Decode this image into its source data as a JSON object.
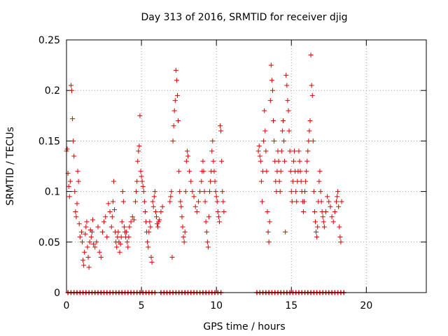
{
  "chart_data": {
    "type": "scatter",
    "title": "Day 313 of 2016, SRMTID for receiver djig",
    "xlabel": "GPS time / hours",
    "ylabel": "SRMTID / TECUs",
    "xlim": [
      0,
      24
    ],
    "ylim": [
      0,
      0.25
    ],
    "xticks": [
      0,
      5,
      10,
      15,
      20
    ],
    "xtick_labels": [
      "0",
      "5",
      "10",
      "15",
      "20"
    ],
    "yticks": [
      0,
      0.05,
      0.1,
      0.15,
      0.2,
      0.25
    ],
    "ytick_labels": [
      "0",
      "0.05",
      "0.1",
      "0.15",
      "0.2",
      "0.25"
    ],
    "grid": true,
    "marker": "+",
    "series": [
      {
        "name": "SRMTID",
        "color": "#e00000",
        "points": [
          [
            0.0,
            0.14
          ],
          [
            0.05,
            0.142
          ],
          [
            0.1,
            0.118
          ],
          [
            0.15,
            0.105
          ],
          [
            0.2,
            0.095
          ],
          [
            0.25,
            0.11
          ],
          [
            0.3,
            0.205
          ],
          [
            0.35,
            0.2
          ],
          [
            0.4,
            0.172
          ],
          [
            0.45,
            0.15
          ],
          [
            0.5,
            0.135
          ],
          [
            0.55,
            0.1
          ],
          [
            0.6,
            0.08
          ],
          [
            0.65,
            0.075
          ],
          [
            0.7,
            0.088
          ],
          [
            0.75,
            0.12
          ],
          [
            0.8,
            0.11
          ],
          [
            0.85,
            0.068
          ],
          [
            0.9,
            0.055
          ],
          [
            1.0,
            0.06
          ],
          [
            1.05,
            0.05
          ],
          [
            1.1,
            0.032
          ],
          [
            1.15,
            0.027
          ],
          [
            1.2,
            0.04
          ],
          [
            1.25,
            0.058
          ],
          [
            1.3,
            0.065
          ],
          [
            1.35,
            0.07
          ],
          [
            1.4,
            0.045
          ],
          [
            1.45,
            0.035
          ],
          [
            1.5,
            0.025
          ],
          [
            1.55,
            0.05
          ],
          [
            1.6,
            0.062
          ],
          [
            1.65,
            0.055
          ],
          [
            1.7,
            0.06
          ],
          [
            1.75,
            0.072
          ],
          [
            1.8,
            0.048
          ],
          [
            1.9,
            0.045
          ],
          [
            2.0,
            0.05
          ],
          [
            2.1,
            0.065
          ],
          [
            2.2,
            0.04
          ],
          [
            2.3,
            0.035
          ],
          [
            2.4,
            0.06
          ],
          [
            2.5,
            0.07
          ],
          [
            2.6,
            0.075
          ],
          [
            2.7,
            0.055
          ],
          [
            2.8,
            0.088
          ],
          [
            2.9,
            0.08
          ],
          [
            3.0,
            0.065
          ],
          [
            3.05,
            0.075
          ],
          [
            3.1,
            0.09
          ],
          [
            3.15,
            0.11
          ],
          [
            3.2,
            0.082
          ],
          [
            3.25,
            0.06
          ],
          [
            3.3,
            0.05
          ],
          [
            3.35,
            0.045
          ],
          [
            3.4,
            0.055
          ],
          [
            3.45,
            0.06
          ],
          [
            3.5,
            0.05
          ],
          [
            3.55,
            0.04
          ],
          [
            3.6,
            0.048
          ],
          [
            3.65,
            0.055
          ],
          [
            3.7,
            0.07
          ],
          [
            3.75,
            0.1
          ],
          [
            3.8,
            0.09
          ],
          [
            3.85,
            0.065
          ],
          [
            3.9,
            0.06
          ],
          [
            3.95,
            0.055
          ],
          [
            4.0,
            0.06
          ],
          [
            4.05,
            0.05
          ],
          [
            4.1,
            0.045
          ],
          [
            4.15,
            0.055
          ],
          [
            4.2,
            0.065
          ],
          [
            4.3,
            0.07
          ],
          [
            4.4,
            0.075
          ],
          [
            4.5,
            0.072
          ],
          [
            4.6,
            0.09
          ],
          [
            4.65,
            0.1
          ],
          [
            4.7,
            0.11
          ],
          [
            4.75,
            0.13
          ],
          [
            4.8,
            0.14
          ],
          [
            4.85,
            0.145
          ],
          [
            4.9,
            0.175
          ],
          [
            4.95,
            0.12
          ],
          [
            5.0,
            0.115
          ],
          [
            5.05,
            0.11
          ],
          [
            5.1,
            0.105
          ],
          [
            5.15,
            0.1
          ],
          [
            5.2,
            0.09
          ],
          [
            5.25,
            0.08
          ],
          [
            5.3,
            0.07
          ],
          [
            5.35,
            0.06
          ],
          [
            5.4,
            0.05
          ],
          [
            5.45,
            0.045
          ],
          [
            5.5,
            0.06
          ],
          [
            5.55,
            0.07
          ],
          [
            5.6,
            0.065
          ],
          [
            5.65,
            0.035
          ],
          [
            5.7,
            0.03
          ],
          [
            5.75,
            0.09
          ],
          [
            5.8,
            0.085
          ],
          [
            5.85,
            0.095
          ],
          [
            5.9,
            0.1
          ],
          [
            5.95,
            0.08
          ],
          [
            6.0,
            0.075
          ],
          [
            6.05,
            0.068
          ],
          [
            6.1,
            0.065
          ],
          [
            6.15,
            0.07
          ],
          [
            6.2,
            0.072
          ],
          [
            6.3,
            0.08
          ],
          [
            6.4,
            0.085
          ],
          [
            6.9,
            0.09
          ],
          [
            6.95,
            0.095
          ],
          [
            7.0,
            0.1
          ],
          [
            7.05,
            0.035
          ],
          [
            7.1,
            0.15
          ],
          [
            7.15,
            0.165
          ],
          [
            7.2,
            0.18
          ],
          [
            7.25,
            0.19
          ],
          [
            7.3,
            0.22
          ],
          [
            7.35,
            0.21
          ],
          [
            7.4,
            0.195
          ],
          [
            7.45,
            0.17
          ],
          [
            7.5,
            0.12
          ],
          [
            7.55,
            0.1
          ],
          [
            7.6,
            0.09
          ],
          [
            7.65,
            0.085
          ],
          [
            7.7,
            0.075
          ],
          [
            7.75,
            0.065
          ],
          [
            7.8,
            0.055
          ],
          [
            7.85,
            0.05
          ],
          [
            7.9,
            0.06
          ],
          [
            7.95,
            0.1
          ],
          [
            8.0,
            0.13
          ],
          [
            8.05,
            0.14
          ],
          [
            8.1,
            0.135
          ],
          [
            8.2,
            0.12
          ],
          [
            8.3,
            0.11
          ],
          [
            8.4,
            0.1
          ],
          [
            8.5,
            0.095
          ],
          [
            8.6,
            0.085
          ],
          [
            8.7,
            0.08
          ],
          [
            8.8,
            0.09
          ],
          [
            8.9,
            0.1
          ],
          [
            9.0,
            0.11
          ],
          [
            9.05,
            0.12
          ],
          [
            9.1,
            0.13
          ],
          [
            9.15,
            0.12
          ],
          [
            9.2,
            0.1
          ],
          [
            9.25,
            0.09
          ],
          [
            9.3,
            0.07
          ],
          [
            9.35,
            0.06
          ],
          [
            9.4,
            0.05
          ],
          [
            9.45,
            0.045
          ],
          [
            9.5,
            0.075
          ],
          [
            9.55,
            0.1
          ],
          [
            9.6,
            0.11
          ],
          [
            9.65,
            0.12
          ],
          [
            9.7,
            0.14
          ],
          [
            9.75,
            0.15
          ],
          [
            9.8,
            0.13
          ],
          [
            9.85,
            0.12
          ],
          [
            9.9,
            0.11
          ],
          [
            9.95,
            0.1
          ],
          [
            10.0,
            0.095
          ],
          [
            10.05,
            0.09
          ],
          [
            10.1,
            0.08
          ],
          [
            10.15,
            0.075
          ],
          [
            10.2,
            0.07
          ],
          [
            10.25,
            0.165
          ],
          [
            10.3,
            0.16
          ],
          [
            10.35,
            0.13
          ],
          [
            10.4,
            0.1
          ],
          [
            10.45,
            0.09
          ],
          [
            10.5,
            0.08
          ],
          [
            12.8,
            0.14
          ],
          [
            12.85,
            0.145
          ],
          [
            12.9,
            0.135
          ],
          [
            12.95,
            0.13
          ],
          [
            13.0,
            0.11
          ],
          [
            13.05,
            0.09
          ],
          [
            13.1,
            0.12
          ],
          [
            13.15,
            0.15
          ],
          [
            13.2,
            0.18
          ],
          [
            13.25,
            0.16
          ],
          [
            13.3,
            0.14
          ],
          [
            13.35,
            0.12
          ],
          [
            13.4,
            0.08
          ],
          [
            13.45,
            0.06
          ],
          [
            13.5,
            0.05
          ],
          [
            13.55,
            0.07
          ],
          [
            13.6,
            0.19
          ],
          [
            13.65,
            0.225
          ],
          [
            13.7,
            0.21
          ],
          [
            13.75,
            0.2
          ],
          [
            13.8,
            0.17
          ],
          [
            13.85,
            0.15
          ],
          [
            13.9,
            0.13
          ],
          [
            13.95,
            0.11
          ],
          [
            14.0,
            0.1
          ],
          [
            14.05,
            0.12
          ],
          [
            14.1,
            0.14
          ],
          [
            14.15,
            0.13
          ],
          [
            14.2,
            0.11
          ],
          [
            14.25,
            0.1
          ],
          [
            14.3,
            0.12
          ],
          [
            14.35,
            0.14
          ],
          [
            14.4,
            0.16
          ],
          [
            14.45,
            0.17
          ],
          [
            14.5,
            0.15
          ],
          [
            14.55,
            0.13
          ],
          [
            14.6,
            0.06
          ],
          [
            14.65,
            0.215
          ],
          [
            14.7,
            0.205
          ],
          [
            14.75,
            0.19
          ],
          [
            14.8,
            0.18
          ],
          [
            14.85,
            0.16
          ],
          [
            14.9,
            0.14
          ],
          [
            14.95,
            0.12
          ],
          [
            15.0,
            0.1
          ],
          [
            15.05,
            0.09
          ],
          [
            15.1,
            0.11
          ],
          [
            15.15,
            0.13
          ],
          [
            15.2,
            0.14
          ],
          [
            15.25,
            0.12
          ],
          [
            15.3,
            0.1
          ],
          [
            15.35,
            0.09
          ],
          [
            15.4,
            0.11
          ],
          [
            15.45,
            0.12
          ],
          [
            15.5,
            0.14
          ],
          [
            15.55,
            0.13
          ],
          [
            15.6,
            0.12
          ],
          [
            15.65,
            0.11
          ],
          [
            15.7,
            0.1
          ],
          [
            15.75,
            0.09
          ],
          [
            15.8,
            0.08
          ],
          [
            15.85,
            0.09
          ],
          [
            15.9,
            0.1
          ],
          [
            15.95,
            0.11
          ],
          [
            16.0,
            0.12
          ],
          [
            16.05,
            0.13
          ],
          [
            16.1,
            0.14
          ],
          [
            16.15,
            0.15
          ],
          [
            16.2,
            0.16
          ],
          [
            16.25,
            0.17
          ],
          [
            16.3,
            0.235
          ],
          [
            16.35,
            0.205
          ],
          [
            16.4,
            0.195
          ],
          [
            16.45,
            0.15
          ],
          [
            16.5,
            0.1
          ],
          [
            16.55,
            0.08
          ],
          [
            16.6,
            0.07
          ],
          [
            16.65,
            0.06
          ],
          [
            16.7,
            0.055
          ],
          [
            16.75,
            0.065
          ],
          [
            16.8,
            0.09
          ],
          [
            16.85,
            0.11
          ],
          [
            16.9,
            0.12
          ],
          [
            16.95,
            0.1
          ],
          [
            17.0,
            0.09
          ],
          [
            17.05,
            0.08
          ],
          [
            17.1,
            0.075
          ],
          [
            17.15,
            0.07
          ],
          [
            17.2,
            0.065
          ],
          [
            17.3,
            0.08
          ],
          [
            17.4,
            0.095
          ],
          [
            17.5,
            0.09
          ],
          [
            17.6,
            0.085
          ],
          [
            17.7,
            0.075
          ],
          [
            17.8,
            0.07
          ],
          [
            17.9,
            0.08
          ],
          [
            18.0,
            0.09
          ],
          [
            18.05,
            0.095
          ],
          [
            18.1,
            0.1
          ],
          [
            18.15,
            0.085
          ],
          [
            18.2,
            0.065
          ],
          [
            18.25,
            0.055
          ],
          [
            18.3,
            0.05
          ],
          [
            18.35,
            0.09
          ]
        ]
      }
    ],
    "zero_markers_x": [
      0.1,
      0.3,
      0.5,
      0.7,
      0.9,
      1.1,
      1.3,
      1.5,
      1.7,
      1.9,
      2.1,
      2.3,
      2.5,
      2.7,
      2.9,
      3.1,
      3.3,
      3.5,
      3.7,
      3.9,
      4.1,
      4.3,
      4.5,
      4.7,
      4.9,
      5.1,
      5.3,
      5.5,
      5.7,
      5.9,
      6.3,
      6.5,
      6.7,
      6.9,
      7.1,
      7.3,
      7.5,
      7.7,
      7.9,
      8.1,
      8.3,
      8.5,
      8.7,
      8.9,
      9.1,
      9.3,
      9.5,
      9.7,
      9.9,
      10.1,
      10.3,
      12.7,
      12.9,
      13.1,
      13.3,
      13.5,
      13.7,
      13.9,
      14.1,
      14.3,
      14.5,
      14.7,
      14.9,
      15.1,
      15.3,
      15.5,
      15.7,
      15.9,
      16.1,
      16.3,
      16.5,
      16.7,
      16.9,
      17.1,
      17.3,
      17.5,
      17.7,
      17.9,
      18.1,
      18.3,
      18.5
    ]
  }
}
